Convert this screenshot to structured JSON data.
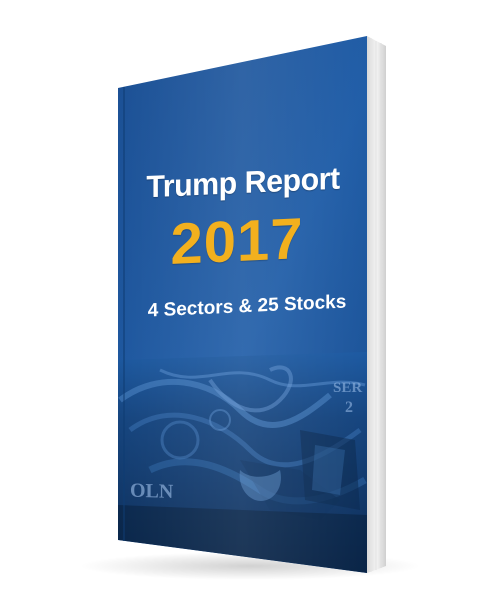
{
  "book": {
    "title": "Trump Report",
    "year": "2017",
    "subtitle": "4 Sectors & 25 Stocks"
  },
  "colors": {
    "cover_blue": "#1f5aa3",
    "year_gold": "#f2b01e",
    "title_white": "#ffffff"
  }
}
